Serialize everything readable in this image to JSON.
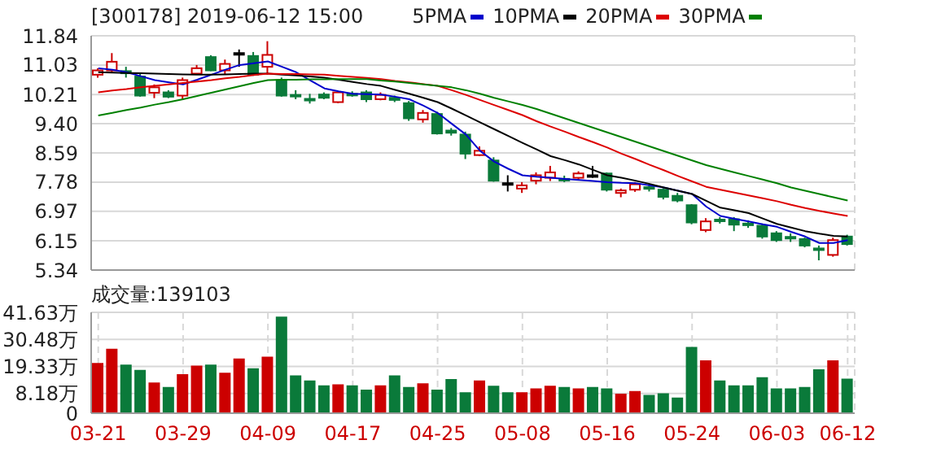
{
  "chart_data": [
    {
      "type": "candlestick",
      "title": "[300178] 2019-06-12 15:00",
      "legend": "top",
      "tick_labels": "y",
      "grid": true,
      "marker": "none",
      "categories": [
        null,
        null,
        null,
        null,
        null,
        null,
        null,
        null,
        null,
        null,
        null,
        null,
        null,
        null,
        null,
        null,
        null,
        null,
        null,
        null,
        null,
        null,
        null,
        null,
        null,
        null,
        null,
        null,
        null,
        null,
        null,
        null,
        null,
        null,
        null,
        null,
        null,
        null,
        null,
        null,
        null,
        null,
        null,
        null,
        null,
        null,
        null,
        null,
        null,
        null,
        null,
        null,
        null,
        null
      ],
      "ohlc": [
        [
          10.76,
          10.94,
          10.68,
          10.88
        ],
        [
          10.88,
          11.36,
          10.83,
          11.12
        ],
        [
          10.86,
          10.98,
          10.68,
          10.8
        ],
        [
          10.71,
          10.79,
          10.15,
          10.18
        ],
        [
          10.26,
          10.49,
          10.11,
          10.41
        ],
        [
          10.27,
          10.33,
          10.11,
          10.15
        ],
        [
          10.18,
          10.68,
          10.08,
          10.61
        ],
        [
          10.79,
          11.03,
          10.76,
          10.94
        ],
        [
          11.25,
          11.3,
          10.86,
          10.88
        ],
        [
          10.88,
          11.18,
          10.76,
          11.06
        ],
        [
          11.36,
          11.46,
          10.98,
          11.36
        ],
        [
          11.28,
          11.39,
          10.73,
          10.76
        ],
        [
          10.98,
          11.69,
          10.76,
          11.31
        ],
        [
          10.61,
          10.68,
          10.15,
          10.18
        ],
        [
          10.2,
          10.33,
          10.08,
          10.17
        ],
        [
          10.09,
          10.23,
          9.96,
          10.06
        ],
        [
          10.21,
          10.27,
          10.08,
          10.12
        ],
        [
          10.0,
          10.3,
          9.97,
          10.27
        ],
        [
          10.23,
          10.3,
          10.15,
          10.2
        ],
        [
          10.27,
          10.33,
          10.0,
          10.08
        ],
        [
          10.08,
          10.27,
          10.05,
          10.2
        ],
        [
          10.12,
          10.18,
          10.0,
          10.06
        ],
        [
          9.97,
          10.03,
          9.48,
          9.55
        ],
        [
          9.52,
          9.78,
          9.43,
          9.7
        ],
        [
          9.67,
          9.73,
          9.1,
          9.13
        ],
        [
          9.21,
          9.28,
          9.07,
          9.15
        ],
        [
          9.1,
          9.18,
          8.42,
          8.57
        ],
        [
          8.53,
          8.77,
          8.5,
          8.65
        ],
        [
          8.38,
          8.47,
          7.79,
          7.82
        ],
        [
          7.75,
          7.97,
          7.52,
          7.75
        ],
        [
          7.6,
          7.78,
          7.48,
          7.69
        ],
        [
          7.82,
          8.05,
          7.72,
          7.97
        ],
        [
          7.9,
          8.23,
          7.81,
          8.05
        ],
        [
          7.87,
          7.96,
          7.78,
          7.84
        ],
        [
          7.9,
          8.08,
          7.84,
          8.02
        ],
        [
          7.97,
          8.23,
          7.9,
          7.97
        ],
        [
          8.02,
          8.05,
          7.52,
          7.57
        ],
        [
          7.48,
          7.6,
          7.36,
          7.55
        ],
        [
          7.57,
          7.78,
          7.51,
          7.72
        ],
        [
          7.64,
          7.72,
          7.52,
          7.6
        ],
        [
          7.57,
          7.61,
          7.3,
          7.37
        ],
        [
          7.4,
          7.48,
          7.22,
          7.27
        ],
        [
          7.14,
          7.17,
          6.61,
          6.66
        ],
        [
          6.45,
          6.78,
          6.39,
          6.69
        ],
        [
          6.74,
          6.81,
          6.63,
          6.71
        ],
        [
          6.75,
          6.81,
          6.42,
          6.6
        ],
        [
          6.63,
          6.72,
          6.51,
          6.6
        ],
        [
          6.57,
          6.63,
          6.21,
          6.27
        ],
        [
          6.36,
          6.42,
          6.12,
          6.17
        ],
        [
          6.26,
          6.36,
          6.12,
          6.23
        ],
        [
          6.2,
          6.24,
          5.97,
          6.02
        ],
        [
          5.94,
          6.02,
          5.61,
          5.9
        ],
        [
          5.76,
          6.24,
          5.71,
          6.17
        ],
        [
          6.27,
          6.32,
          6.02,
          6.06
        ]
      ],
      "colors": [
        "#cc0000",
        "#cc0000",
        "#0a7a3a",
        "#0a7a3a",
        "#cc0000",
        "#0a7a3a",
        "#cc0000",
        "#cc0000",
        "#0a7a3a",
        "#cc0000",
        "#000000",
        "#0a7a3a",
        "#cc0000",
        "#0a7a3a",
        "#0a7a3a",
        "#0a7a3a",
        "#0a7a3a",
        "#cc0000",
        "#0a7a3a",
        "#0a7a3a",
        "#cc0000",
        "#0a7a3a",
        "#0a7a3a",
        "#cc0000",
        "#0a7a3a",
        "#0a7a3a",
        "#0a7a3a",
        "#cc0000",
        "#0a7a3a",
        "#000000",
        "#cc0000",
        "#cc0000",
        "#cc0000",
        "#0a7a3a",
        "#cc0000",
        "#000000",
        "#0a7a3a",
        "#cc0000",
        "#cc0000",
        "#0a7a3a",
        "#0a7a3a",
        "#0a7a3a",
        "#0a7a3a",
        "#cc0000",
        "#0a7a3a",
        "#0a7a3a",
        "#0a7a3a",
        "#0a7a3a",
        "#0a7a3a",
        "#0a7a3a",
        "#0a7a3a",
        "#0a7a3a",
        "#cc0000",
        "#0a7a3a"
      ],
      "series": [
        {
          "type": "line",
          "name": "5PMA",
          "color": "#0000cc",
          "values": [
            10.94,
            10.9,
            10.83,
            10.72,
            10.61,
            10.55,
            10.49,
            10.62,
            10.76,
            10.9,
            11.03,
            11.08,
            11.13,
            10.98,
            10.83,
            10.6,
            10.38,
            10.3,
            10.23,
            10.22,
            10.21,
            10.15,
            10.08,
            9.9,
            9.7,
            9.4,
            9.1,
            8.65,
            8.35,
            8.15,
            7.97,
            7.93,
            7.9,
            7.87,
            7.84,
            7.81,
            7.78,
            7.76,
            7.75,
            7.69,
            7.63,
            7.54,
            7.45,
            7.1,
            6.84,
            6.76,
            6.69,
            6.61,
            6.54,
            6.4,
            6.27,
            6.09,
            6.09,
            6.17
          ]
        },
        {
          "type": "line",
          "name": "10PMA",
          "color": "#000000",
          "values": [
            10.83,
            10.82,
            10.81,
            10.8,
            10.79,
            10.78,
            10.77,
            10.76,
            10.76,
            10.77,
            10.78,
            10.79,
            10.79,
            10.76,
            10.74,
            10.71,
            10.68,
            10.62,
            10.56,
            10.5,
            10.45,
            10.34,
            10.23,
            10.12,
            10.0,
            9.82,
            9.63,
            9.44,
            9.25,
            9.06,
            8.87,
            8.69,
            8.5,
            8.39,
            8.27,
            8.12,
            7.97,
            7.9,
            7.82,
            7.73,
            7.63,
            7.54,
            7.45,
            7.26,
            7.07,
            7.0,
            6.92,
            6.77,
            6.62,
            6.52,
            6.42,
            6.35,
            6.29,
            6.27
          ]
        },
        {
          "type": "line",
          "name": "20PMA",
          "color": "#dd0000",
          "values": [
            10.27,
            10.32,
            10.36,
            10.41,
            10.45,
            10.49,
            10.53,
            10.57,
            10.61,
            10.66,
            10.7,
            10.75,
            10.79,
            10.78,
            10.78,
            10.77,
            10.76,
            10.73,
            10.7,
            10.67,
            10.64,
            10.59,
            10.55,
            10.5,
            10.45,
            10.33,
            10.2,
            10.06,
            9.92,
            9.78,
            9.64,
            9.47,
            9.32,
            9.18,
            9.03,
            8.89,
            8.74,
            8.57,
            8.42,
            8.26,
            8.11,
            7.95,
            7.8,
            7.65,
            7.57,
            7.49,
            7.41,
            7.33,
            7.25,
            7.15,
            7.06,
            6.98,
            6.91,
            6.84
          ]
        },
        {
          "type": "line",
          "name": "30PMA",
          "color": "#008000",
          "values": [
            9.63,
            9.7,
            9.78,
            9.85,
            9.93,
            10.0,
            10.08,
            10.17,
            10.26,
            10.35,
            10.44,
            10.53,
            10.61,
            10.62,
            10.62,
            10.63,
            10.63,
            10.64,
            10.64,
            10.64,
            10.6,
            10.57,
            10.53,
            10.49,
            10.45,
            10.41,
            10.33,
            10.23,
            10.12,
            10.02,
            9.92,
            9.81,
            9.68,
            9.55,
            9.42,
            9.29,
            9.16,
            9.03,
            8.9,
            8.77,
            8.64,
            8.51,
            8.38,
            8.25,
            8.15,
            8.05,
            7.95,
            7.85,
            7.75,
            7.63,
            7.54,
            7.45,
            7.36,
            7.27
          ]
        }
      ],
      "ylim": [
        5.34,
        11.84
      ],
      "yticks": [
        5.34,
        6.15,
        6.97,
        7.78,
        8.59,
        {
          "value": 9.4,
          "label": "9.40"
        },
        10.21,
        11.03,
        11.84
      ]
    },
    {
      "type": "bar",
      "title": "成交量:139103",
      "grid": true,
      "categories": [
        "03-21",
        null,
        null,
        null,
        null,
        null,
        "03-29",
        null,
        null,
        null,
        null,
        null,
        "04-09",
        null,
        null,
        null,
        null,
        null,
        "04-17",
        null,
        null,
        null,
        null,
        null,
        "04-25",
        null,
        null,
        null,
        null,
        null,
        "05-08",
        null,
        null,
        null,
        null,
        null,
        "05-16",
        null,
        null,
        null,
        null,
        null,
        "05-24",
        null,
        null,
        null,
        null,
        null,
        "06-03",
        null,
        null,
        null,
        null,
        "06-12"
      ],
      "values": [
        20.4,
        26.3,
        19.7,
        17.5,
        12.3,
        10.5,
        15.8,
        19.3,
        19.7,
        16.4,
        22.2,
        18.2,
        23.0,
        39.5,
        15.3,
        13.2,
        11.2,
        11.6,
        11.2,
        9.4,
        11.2,
        15.3,
        10.5,
        12.0,
        9.4,
        13.8,
        8.3,
        13.2,
        11.0,
        8.3,
        8.3,
        9.9,
        11.0,
        10.5,
        9.9,
        10.5,
        9.9,
        7.7,
        8.8,
        7.2,
        7.9,
        6.1,
        27.0,
        21.5,
        13.2,
        11.2,
        11.2,
        14.5,
        9.9,
        9.9,
        10.5,
        17.8,
        21.5,
        13.9
      ],
      "colors": [
        "#cc0000",
        "#cc0000",
        "#0a7a3a",
        "#0a7a3a",
        "#cc0000",
        "#0a7a3a",
        "#cc0000",
        "#cc0000",
        "#0a7a3a",
        "#cc0000",
        "#cc0000",
        "#0a7a3a",
        "#cc0000",
        "#0a7a3a",
        "#0a7a3a",
        "#0a7a3a",
        "#0a7a3a",
        "#cc0000",
        "#0a7a3a",
        "#0a7a3a",
        "#cc0000",
        "#0a7a3a",
        "#0a7a3a",
        "#cc0000",
        "#0a7a3a",
        "#0a7a3a",
        "#0a7a3a",
        "#cc0000",
        "#0a7a3a",
        "#0a7a3a",
        "#cc0000",
        "#cc0000",
        "#cc0000",
        "#0a7a3a",
        "#cc0000",
        "#0a7a3a",
        "#0a7a3a",
        "#cc0000",
        "#cc0000",
        "#0a7a3a",
        "#0a7a3a",
        "#0a7a3a",
        "#0a7a3a",
        "#cc0000",
        "#0a7a3a",
        "#0a7a3a",
        "#0a7a3a",
        "#0a7a3a",
        "#0a7a3a",
        "#0a7a3a",
        "#0a7a3a",
        "#0a7a3a",
        "#cc0000",
        "#0a7a3a"
      ],
      "ylim": [
        0,
        41.63
      ],
      "yticks": [
        0,
        {
          "value": 8.18,
          "label": "8.18万"
        },
        {
          "value": 19.33,
          "label": "19.33万"
        },
        {
          "value": 30.48,
          "label": "30.48万"
        },
        {
          "value": 41.63,
          "label": "41.63万"
        }
      ]
    }
  ]
}
